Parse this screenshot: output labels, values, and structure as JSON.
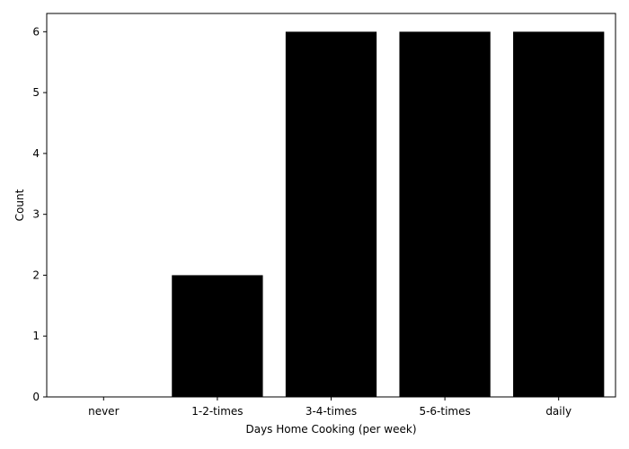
{
  "chart_data": {
    "type": "bar",
    "categories": [
      "never",
      "1-2-times",
      "3-4-times",
      "5-6-times",
      "daily"
    ],
    "values": [
      0,
      2,
      6,
      6,
      6
    ],
    "title": "",
    "xlabel": "Days Home Cooking (per week)",
    "ylabel": "Count",
    "ylim": [
      0,
      6.3
    ],
    "yticks": [
      0,
      1,
      2,
      3,
      4,
      5,
      6
    ],
    "grid": false,
    "bar_color": "#000000"
  }
}
